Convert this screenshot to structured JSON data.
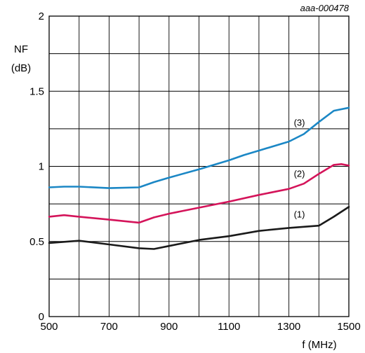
{
  "figure_code": "aaa-000478",
  "chart_data": {
    "type": "line",
    "title": "",
    "xlabel": "f (MHz)",
    "ylabel_line1": "NF",
    "ylabel_line2": "(dB)",
    "xlim": [
      500,
      1500
    ],
    "ylim": [
      0,
      2
    ],
    "xticks": [
      500,
      700,
      900,
      1100,
      1300,
      1500
    ],
    "yticks": [
      0,
      0.5,
      1,
      1.5,
      2
    ],
    "ytick_labels": [
      "0",
      "0.5",
      "1",
      "1.5",
      "2"
    ],
    "grid": true,
    "colors": [
      "#1a1a1a",
      "#d4145a",
      "#1b87c5"
    ],
    "series": [
      {
        "name": "(1)",
        "x": [
          500,
          600,
          700,
          800,
          850,
          900,
          1000,
          1100,
          1200,
          1300,
          1400,
          1450,
          1500
        ],
        "y": [
          0.49,
          0.505,
          0.48,
          0.455,
          0.45,
          0.47,
          0.51,
          0.535,
          0.57,
          0.59,
          0.605,
          0.665,
          0.73
        ]
      },
      {
        "name": "(2)",
        "x": [
          500,
          550,
          600,
          700,
          800,
          850,
          900,
          1000,
          1100,
          1200,
          1300,
          1350,
          1400,
          1450,
          1475,
          1500
        ],
        "y": [
          0.665,
          0.675,
          0.665,
          0.645,
          0.625,
          0.66,
          0.685,
          0.725,
          0.765,
          0.81,
          0.85,
          0.885,
          0.95,
          1.01,
          1.015,
          1.005
        ]
      },
      {
        "name": "(3)",
        "x": [
          500,
          550,
          600,
          700,
          800,
          850,
          900,
          1000,
          1100,
          1150,
          1200,
          1300,
          1350,
          1400,
          1450,
          1500
        ],
        "y": [
          0.86,
          0.865,
          0.865,
          0.855,
          0.86,
          0.895,
          0.925,
          0.98,
          1.04,
          1.075,
          1.105,
          1.165,
          1.215,
          1.295,
          1.37,
          1.39
        ]
      }
    ],
    "series_labels": [
      {
        "text": "(1)",
        "x": 1335,
        "y": 0.66
      },
      {
        "text": "(2)",
        "x": 1335,
        "y": 0.93
      },
      {
        "text": "(3)",
        "x": 1335,
        "y": 1.27
      }
    ]
  }
}
